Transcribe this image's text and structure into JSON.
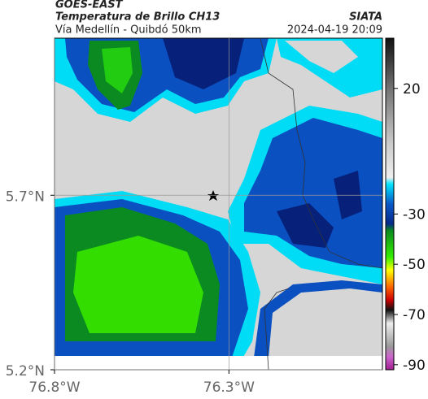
{
  "header": {
    "source": "GOES-EAST",
    "title": "Temperatura de Brillo CH13",
    "agency": "SIATA",
    "subtitle": "Vía Medellín - Quibdó 50km",
    "datetime": "2024-04-19 20:09"
  },
  "map": {
    "lat_ticks": [
      {
        "value": 5.7,
        "label": "5.7°N"
      },
      {
        "value": 5.2,
        "label": "5.2°N"
      }
    ],
    "lon_ticks": [
      {
        "value": -76.8,
        "label": "76.8°W"
      },
      {
        "value": -76.3,
        "label": "76.3°W"
      }
    ],
    "latlim": [
      5.2,
      6.15
    ],
    "lonlim": [
      -76.8,
      -75.86
    ]
  },
  "colorbar": {
    "range": [
      -92,
      40
    ],
    "ticks": [
      20,
      -30,
      -50,
      -70,
      -90
    ]
  }
}
